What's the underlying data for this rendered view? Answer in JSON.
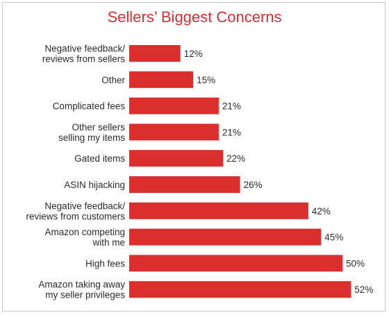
{
  "chart_data": {
    "type": "bar",
    "orientation": "horizontal",
    "title": "Sellers’ Biggest Concerns",
    "categories": [
      [
        "Negative feedback/",
        "reviews from sellers"
      ],
      [
        "Other"
      ],
      [
        "Complicated fees"
      ],
      [
        "Other sellers",
        "selling my items"
      ],
      [
        "Gated items"
      ],
      [
        "ASIN hijacking"
      ],
      [
        "Negative feedback/",
        "reviews from customers"
      ],
      [
        "Amazon competing",
        "with me"
      ],
      [
        "High fees"
      ],
      [
        "Amazon taking away",
        "my seller privileges"
      ]
    ],
    "values": [
      12,
      15,
      21,
      21,
      22,
      26,
      42,
      45,
      50,
      52
    ],
    "value_labels": [
      "12%",
      "15%",
      "21%",
      "21%",
      "22%",
      "26%",
      "42%",
      "45%",
      "50%",
      "52%"
    ],
    "xlim": [
      0,
      54
    ],
    "grid": false,
    "bar_color": "#d9302e",
    "title_color": "#d9302e"
  }
}
